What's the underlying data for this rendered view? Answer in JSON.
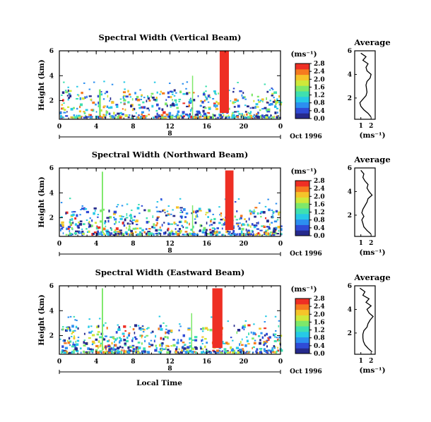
{
  "figure": {
    "colorscale": [
      "#262a8c",
      "#2f4bd6",
      "#2c8ff0",
      "#26c9e6",
      "#3fe0b0",
      "#7ee86a",
      "#cfe83a",
      "#f5c42a",
      "#f57a1f",
      "#ee2f24"
    ],
    "panel_border_color": "#000000"
  },
  "chart_data": [
    {
      "type": "heatmap",
      "title": "Spectral Width (Vertical Beam)",
      "ylabel": "Height (km)",
      "xlabel": "",
      "x_ticks": [
        "0",
        "4",
        "8",
        "12",
        "16",
        "20",
        "0"
      ],
      "day_label": "8",
      "date_label": "Oct 1996",
      "y_ticks": [
        "2",
        "4",
        "6"
      ],
      "xlim": [
        0,
        24
      ],
      "ylim": [
        0.5,
        6
      ],
      "colorbar": {
        "unit": "(ms⁻¹)",
        "ticks": [
          "0.0",
          "0.4",
          "0.8",
          "1.2",
          "1.6",
          "2.0",
          "2.4",
          "2.8"
        ]
      },
      "features": [
        {
          "x0": 17.4,
          "x1": 18.4,
          "y0": 1.0,
          "y1": 6.0,
          "value": 2.8,
          "note": "strong echo band"
        },
        {
          "x0": 14.4,
          "x1": 14.5,
          "y0": 0.8,
          "y1": 4.0,
          "value": 1.6
        },
        {
          "x0": 4.3,
          "x1": 4.5,
          "y0": 0.8,
          "y1": 2.9,
          "value": 1.4
        }
      ],
      "profile": {
        "title": "Average",
        "xlabel": "(ms⁻¹)",
        "x_ticks": [
          "1",
          "2"
        ],
        "y_ticks": [
          "2",
          "4",
          "6"
        ],
        "xlim": [
          0.4,
          2.4
        ],
        "ylim": [
          0.2,
          6
        ],
        "height_km": [
          0.4,
          0.7,
          1.0,
          1.3,
          1.6,
          1.9,
          2.2,
          2.5,
          2.8,
          3.1,
          3.4,
          3.7,
          4.0,
          4.3,
          4.6,
          4.9,
          5.2,
          5.5,
          5.8
        ],
        "width": [
          2.0,
          1.7,
          1.3,
          1.0,
          0.9,
          1.2,
          1.5,
          1.6,
          1.55,
          1.5,
          1.6,
          1.9,
          2.0,
          1.6,
          1.5,
          1.7,
          1.2,
          1.5,
          1.0
        ]
      }
    },
    {
      "type": "heatmap",
      "title": "Spectral Width (Northward Beam)",
      "ylabel": "Height (km)",
      "xlabel": "",
      "x_ticks": [
        "0",
        "4",
        "8",
        "12",
        "16",
        "20",
        "0"
      ],
      "day_label": "8",
      "date_label": "Oct 1996",
      "y_ticks": [
        "2",
        "4",
        "6"
      ],
      "xlim": [
        0,
        24
      ],
      "ylim": [
        0.5,
        6
      ],
      "colorbar": {
        "unit": "(ms⁻¹)",
        "ticks": [
          "0.0",
          "0.4",
          "0.8",
          "1.2",
          "1.6",
          "2.0",
          "2.4",
          "2.8"
        ]
      },
      "features": [
        {
          "x0": 18.0,
          "x1": 18.9,
          "y0": 1.0,
          "y1": 5.8,
          "value": 2.8
        },
        {
          "x0": 14.4,
          "x1": 14.5,
          "y0": 0.8,
          "y1": 3.0,
          "value": 1.6
        },
        {
          "x0": 4.6,
          "x1": 4.75,
          "y0": 0.8,
          "y1": 5.7,
          "value": 1.4
        }
      ],
      "profile": {
        "title": "Average",
        "xlabel": "(ms⁻¹)",
        "x_ticks": [
          "1",
          "2"
        ],
        "y_ticks": [
          "2",
          "4",
          "6"
        ],
        "xlim": [
          0.4,
          2.4
        ],
        "ylim": [
          0.2,
          6
        ],
        "height_km": [
          0.4,
          0.7,
          1.0,
          1.3,
          1.6,
          1.9,
          2.2,
          2.5,
          2.8,
          3.1,
          3.4,
          3.7,
          4.0,
          4.3,
          4.6,
          4.9,
          5.2,
          5.5,
          5.8
        ],
        "width": [
          2.0,
          1.6,
          1.3,
          1.2,
          1.1,
          1.3,
          1.1,
          1.2,
          1.4,
          1.6,
          1.7,
          2.1,
          1.8,
          1.6,
          1.7,
          1.4,
          1.2,
          1.3,
          1.0
        ]
      }
    },
    {
      "type": "heatmap",
      "title": "Spectral Width (Eastward Beam)",
      "ylabel": "Height (km)",
      "xlabel": "Local Time",
      "x_ticks": [
        "0",
        "4",
        "8",
        "12",
        "16",
        "20",
        "0"
      ],
      "day_label": "8",
      "date_label": "Oct 1996",
      "y_ticks": [
        "2",
        "4",
        "6"
      ],
      "xlim": [
        0,
        24
      ],
      "ylim": [
        0.5,
        6
      ],
      "colorbar": {
        "unit": "(ms⁻¹)",
        "ticks": [
          "0.0",
          "0.4",
          "0.8",
          "1.2",
          "1.6",
          "2.0",
          "2.4",
          "2.8"
        ]
      },
      "features": [
        {
          "x0": 16.6,
          "x1": 17.7,
          "y0": 1.0,
          "y1": 5.8,
          "value": 2.8
        },
        {
          "x0": 14.3,
          "x1": 14.4,
          "y0": 0.8,
          "y1": 3.8,
          "value": 1.6
        },
        {
          "x0": 4.6,
          "x1": 4.75,
          "y0": 0.8,
          "y1": 5.8,
          "value": 1.4
        }
      ],
      "profile": {
        "title": "Average",
        "xlabel": "(ms⁻¹)",
        "x_ticks": [
          "1",
          "2"
        ],
        "y_ticks": [
          "2",
          "4",
          "6"
        ],
        "xlim": [
          0.4,
          2.4
        ],
        "ylim": [
          0.2,
          6
        ],
        "height_km": [
          0.4,
          0.7,
          1.0,
          1.3,
          1.6,
          1.9,
          2.2,
          2.5,
          2.8,
          3.1,
          3.4,
          3.7,
          4.0,
          4.3,
          4.6,
          4.9,
          5.2,
          5.5,
          5.8
        ],
        "width": [
          2.1,
          1.7,
          1.4,
          1.25,
          1.2,
          1.2,
          1.3,
          1.6,
          1.7,
          1.9,
          2.2,
          1.8,
          1.6,
          2.0,
          1.5,
          1.8,
          1.2,
          1.4,
          0.9
        ]
      }
    }
  ]
}
